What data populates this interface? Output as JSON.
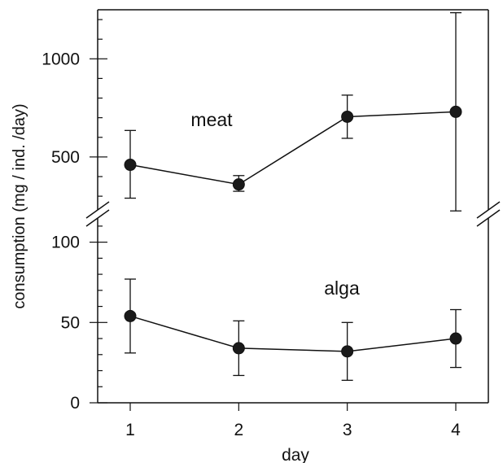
{
  "chart_data": {
    "type": "line",
    "xlabel": "day",
    "ylabel": "consumption (mg / ind. /day)",
    "x": [
      1,
      2,
      3,
      4
    ],
    "x_tick_labels": [
      "1",
      "2",
      "3",
      "4"
    ],
    "xlim": [
      0.7,
      4.3
    ],
    "broken_y_axis": true,
    "panels": [
      {
        "panel": "upper",
        "ylim": [
          230,
          1250
        ],
        "y_tick_labels": [
          "500",
          "1000"
        ],
        "series": [
          {
            "name": "meat",
            "label_text": "meat",
            "values": [
              460,
              360,
              705,
              730
            ],
            "error_low": [
              290,
              325,
              595,
              225
            ],
            "error_high": [
              635,
              405,
              815,
              1235
            ]
          }
        ]
      },
      {
        "panel": "lower",
        "ylim": [
          0,
          115
        ],
        "y_tick_labels": [
          "0",
          "50",
          "100"
        ],
        "series": [
          {
            "name": "alga",
            "label_text": "alga",
            "values": [
              54,
              34,
              32,
              40
            ],
            "error_low": [
              31,
              17,
              14,
              22
            ],
            "error_high": [
              77,
              51,
              50,
              58
            ]
          }
        ]
      }
    ],
    "grid": false,
    "legend": "none",
    "colors": {
      "line": "#111111",
      "marker": "#1a1a1a"
    }
  }
}
